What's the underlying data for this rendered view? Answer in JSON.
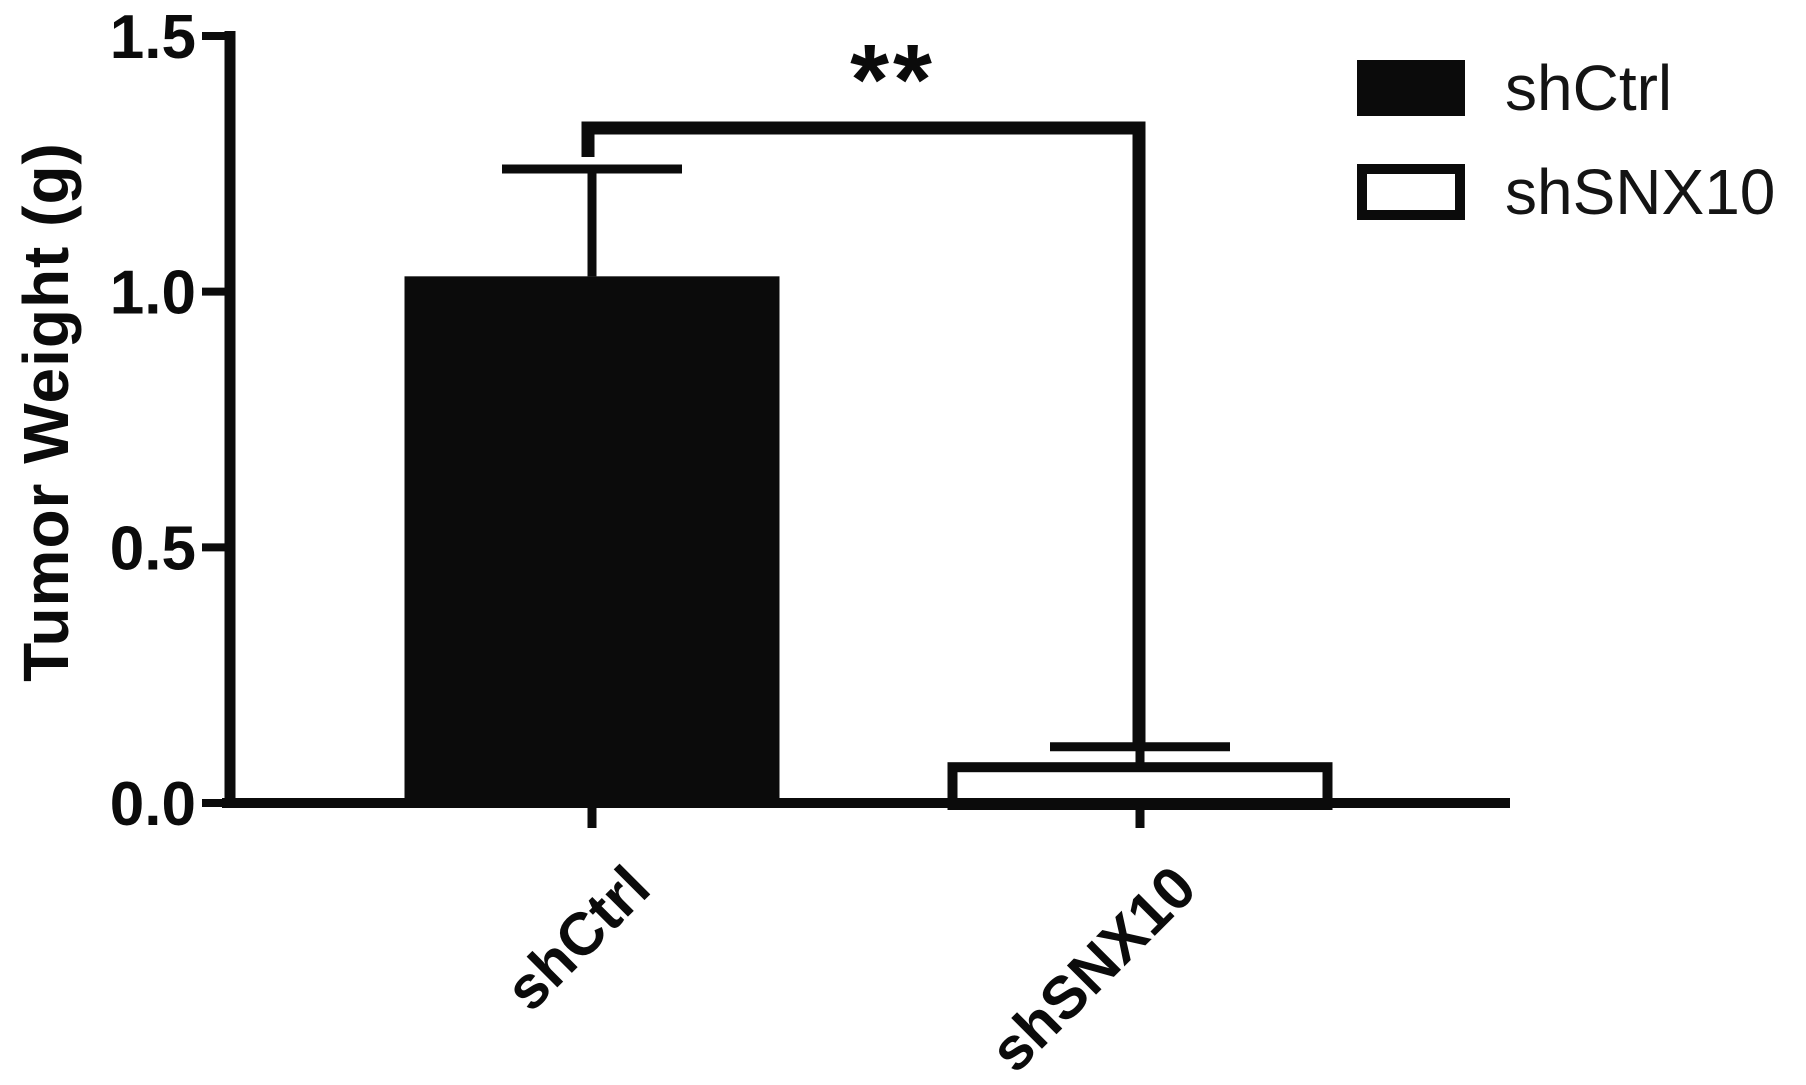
{
  "figure": {
    "background": "#ffffff",
    "ink": "#0b0b0b"
  },
  "chart_data": {
    "type": "bar",
    "title": "",
    "xlabel": "",
    "ylabel": "Tumor Weight (g)",
    "categories": [
      "shCtrl",
      "shSNX10"
    ],
    "series": [
      {
        "name": "shCtrl",
        "value": 1.03,
        "error_up": 0.21,
        "fill": "#0b0b0b",
        "stroke": "#0b0b0b"
      },
      {
        "name": "shSNX10",
        "value": 0.07,
        "error_up": 0.04,
        "fill": "#ffffff",
        "stroke": "#0b0b0b"
      }
    ],
    "ylim": [
      0,
      1.5
    ],
    "yticks": [
      {
        "value": 0.0,
        "label": "0.0"
      },
      {
        "value": 0.5,
        "label": "0.5"
      },
      {
        "value": 1.0,
        "label": "1.0"
      },
      {
        "value": 1.5,
        "label": "1.5"
      }
    ],
    "grid": false,
    "error_bars": "upper SD only, capped",
    "legend": {
      "position": "top-right",
      "entries": [
        {
          "label": "shCtrl",
          "fill": "#0b0b0b",
          "outlined": false
        },
        {
          "label": "shSNX10",
          "fill": "#ffffff",
          "outlined": true
        }
      ]
    },
    "significance": {
      "label": "**",
      "between": [
        "shCtrl",
        "shSNX10"
      ],
      "bracket_value": 1.32
    }
  }
}
